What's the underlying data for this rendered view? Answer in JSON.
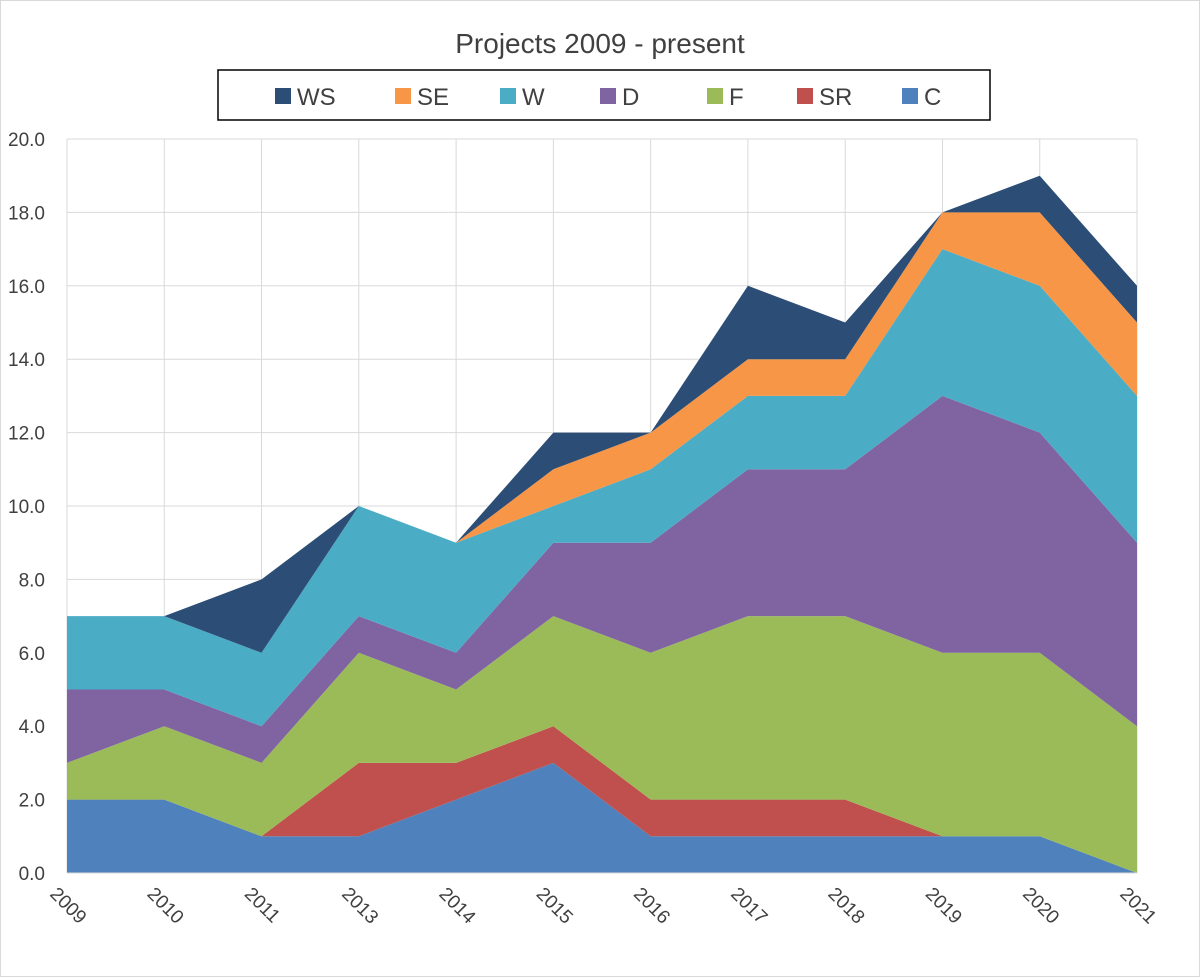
{
  "chart_data": {
    "type": "area",
    "stacked": true,
    "title": "Projects 2009 - present",
    "xlabel": "",
    "ylabel": "",
    "categories": [
      "2009",
      "2010",
      "2011",
      "2013",
      "2014",
      "2015",
      "2016",
      "2017",
      "2018",
      "2019",
      "2020",
      "2021"
    ],
    "ylim": [
      0,
      20
    ],
    "yticks": [
      "0.0",
      "2.0",
      "4.0",
      "6.0",
      "8.0",
      "10.0",
      "12.0",
      "14.0",
      "16.0",
      "18.0",
      "20.0"
    ],
    "grid": true,
    "legend_position": "top",
    "series": [
      {
        "name": "C",
        "color": "#4f81bd",
        "values": [
          2,
          2,
          1,
          1,
          2,
          3,
          1,
          1,
          1,
          1,
          1,
          0
        ]
      },
      {
        "name": "SR",
        "color": "#c0504d",
        "values": [
          0,
          0,
          0,
          2,
          1,
          1,
          1,
          1,
          1,
          0,
          0,
          0
        ]
      },
      {
        "name": "F",
        "color": "#9bbb59",
        "values": [
          1,
          2,
          2,
          3,
          2,
          3,
          4,
          5,
          5,
          5,
          5,
          4
        ]
      },
      {
        "name": "D",
        "color": "#8064a2",
        "values": [
          2,
          1,
          1,
          1,
          1,
          2,
          3,
          4,
          4,
          7,
          6,
          5
        ]
      },
      {
        "name": "W",
        "color": "#4bacc6",
        "values": [
          2,
          2,
          2,
          3,
          3,
          1,
          2,
          2,
          2,
          4,
          4,
          4
        ]
      },
      {
        "name": "SE",
        "color": "#f79646",
        "values": [
          0,
          0,
          0,
          0,
          0,
          1,
          1,
          1,
          1,
          1,
          2,
          2
        ]
      },
      {
        "name": "WS",
        "color": "#2c4d75",
        "values": [
          0,
          0,
          2,
          0,
          0,
          1,
          0,
          2,
          1,
          0,
          1,
          1
        ]
      }
    ],
    "legend_order": [
      "WS",
      "SE",
      "W",
      "D",
      "F",
      "SR",
      "C"
    ]
  }
}
